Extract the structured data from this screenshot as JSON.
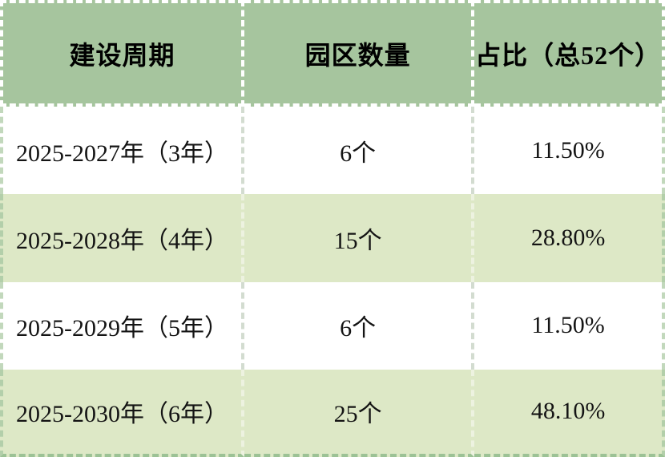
{
  "chart_data": {
    "type": "table",
    "columns": [
      "建设周期",
      "园区数量",
      "占比（总52个）"
    ],
    "rows": [
      [
        "2025-2027年（3年）",
        "6个",
        "11.50%"
      ],
      [
        "2025-2028年（4年）",
        "15个",
        "28.80%"
      ],
      [
        "2025-2029年（5年）",
        "6个",
        "11.50%"
      ],
      [
        "2025-2030年（6年）",
        "25个",
        "48.10%"
      ]
    ],
    "total_parks": 52,
    "layout": {
      "header_position": "top",
      "alternating_rows": true,
      "grid_style": "dashed"
    }
  },
  "colors": {
    "header_bg": "#a6c59e",
    "row_bg_white": "#ffffff",
    "row_bg_green": "#dde8c6",
    "header_grid_dash": "#ffffff",
    "white_row_divider_dash": "#d3dcd0",
    "green_row_divider_dash": "#edf2e0",
    "outer_border_dash": "#9cc295",
    "header_text": "#000000",
    "body_text": "#141414"
  }
}
